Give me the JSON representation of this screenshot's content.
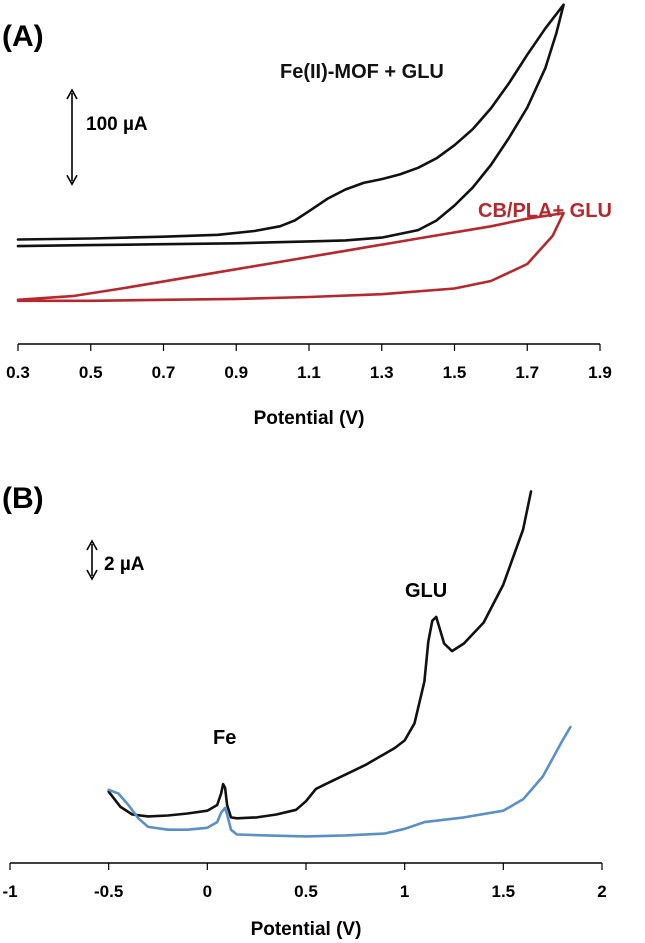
{
  "chart_data": [
    {
      "type": "line",
      "panel_label": "(A)",
      "xlabel": "Potential (V)",
      "xlim": [
        0.3,
        1.9
      ],
      "ylim": [
        0,
        350
      ],
      "xticks": [
        "0.3",
        "0.5",
        "0.7",
        "0.9",
        "1.1",
        "1.3",
        "1.5",
        "1.7",
        "1.9"
      ],
      "scale_bar": {
        "label": "100 µA",
        "value": 100
      },
      "series": [
        {
          "name": "Fe(II)-MOF + GLU",
          "color": "#111111",
          "x": [
            0.3,
            0.5,
            0.7,
            0.85,
            0.95,
            1.02,
            1.06,
            1.1,
            1.15,
            1.2,
            1.25,
            1.3,
            1.35,
            1.4,
            1.45,
            1.5,
            1.55,
            1.6,
            1.65,
            1.7,
            1.75,
            1.8,
            1.8,
            1.78,
            1.75,
            1.7,
            1.65,
            1.6,
            1.55,
            1.5,
            1.45,
            1.4,
            1.3,
            1.2,
            1.1,
            1.0,
            0.9,
            0.7,
            0.5,
            0.3
          ],
          "y": [
            96,
            97,
            99,
            101,
            105,
            110,
            116,
            126,
            139,
            149,
            156,
            160,
            165,
            172,
            182,
            196,
            213,
            235,
            262,
            292,
            320,
            345,
            345,
            315,
            278,
            236,
            204,
            175,
            151,
            132,
            116,
            106,
            98,
            95,
            94,
            93,
            92,
            91,
            90,
            89
          ]
        },
        {
          "name": "CB/PLA+ GLU",
          "color": "#b5282e",
          "x": [
            0.3,
            0.45,
            0.6,
            0.8,
            1.0,
            1.2,
            1.4,
            1.6,
            1.7,
            1.75,
            1.8,
            1.77,
            1.7,
            1.6,
            1.5,
            1.3,
            1.1,
            0.9,
            0.7,
            0.5,
            0.3
          ],
          "y": [
            32,
            36,
            45,
            58,
            71,
            84,
            97,
            110,
            118,
            121,
            124,
            100,
            70,
            52,
            44,
            38,
            35,
            33,
            32,
            31,
            31
          ]
        }
      ],
      "annotations": [
        {
          "text": "Fe(II)-MOF + GLU",
          "color": "#111111"
        },
        {
          "text": "CB/PLA+ GLU",
          "color": "#b5282e"
        }
      ]
    },
    {
      "type": "line",
      "panel_label": "(B)",
      "xlabel": "Potential (V)",
      "xlim": [
        -1,
        2
      ],
      "ylim": [
        0,
        19
      ],
      "xticks": [
        "-1",
        "-0.5",
        "0",
        "0.5",
        "1",
        "1.5",
        "2"
      ],
      "scale_bar": {
        "label": "2 µA",
        "value": 2
      },
      "series": [
        {
          "color": "#111111",
          "x": [
            -0.5,
            -0.44,
            -0.38,
            -0.3,
            -0.2,
            -0.1,
            0.0,
            0.05,
            0.07,
            0.08,
            0.09,
            0.1,
            0.12,
            0.15,
            0.25,
            0.35,
            0.45,
            0.5,
            0.55,
            0.6,
            0.7,
            0.8,
            0.9,
            0.95,
            1.0,
            1.05,
            1.1,
            1.12,
            1.14,
            1.16,
            1.18,
            1.2,
            1.24,
            1.3,
            1.4,
            1.5,
            1.6,
            1.64
          ],
          "y": [
            2.7,
            1.9,
            1.5,
            1.4,
            1.45,
            1.55,
            1.7,
            2.0,
            2.6,
            3.1,
            2.9,
            2.0,
            1.35,
            1.3,
            1.35,
            1.5,
            1.75,
            2.2,
            2.85,
            3.1,
            3.6,
            4.1,
            4.7,
            5.0,
            5.4,
            6.3,
            8.5,
            10.6,
            11.7,
            11.9,
            11.2,
            10.5,
            10.1,
            10.5,
            11.6,
            13.6,
            16.5,
            18.5
          ]
        },
        {
          "color": "#5b8fc7",
          "x": [
            -0.5,
            -0.45,
            -0.4,
            -0.35,
            -0.3,
            -0.2,
            -0.1,
            0.0,
            0.05,
            0.07,
            0.09,
            0.1,
            0.12,
            0.15,
            0.3,
            0.5,
            0.7,
            0.9,
            1.0,
            1.1,
            1.3,
            1.5,
            1.6,
            1.7,
            1.8,
            1.84
          ],
          "y": [
            2.8,
            2.6,
            2.0,
            1.3,
            0.85,
            0.7,
            0.7,
            0.8,
            1.1,
            1.6,
            1.85,
            1.5,
            0.7,
            0.45,
            0.4,
            0.35,
            0.4,
            0.5,
            0.75,
            1.1,
            1.35,
            1.7,
            2.3,
            3.5,
            5.4,
            6.1
          ]
        }
      ],
      "annotations": [
        {
          "text": "Fe",
          "color": "#000000"
        },
        {
          "text": "GLU",
          "color": "#000000"
        }
      ]
    }
  ]
}
